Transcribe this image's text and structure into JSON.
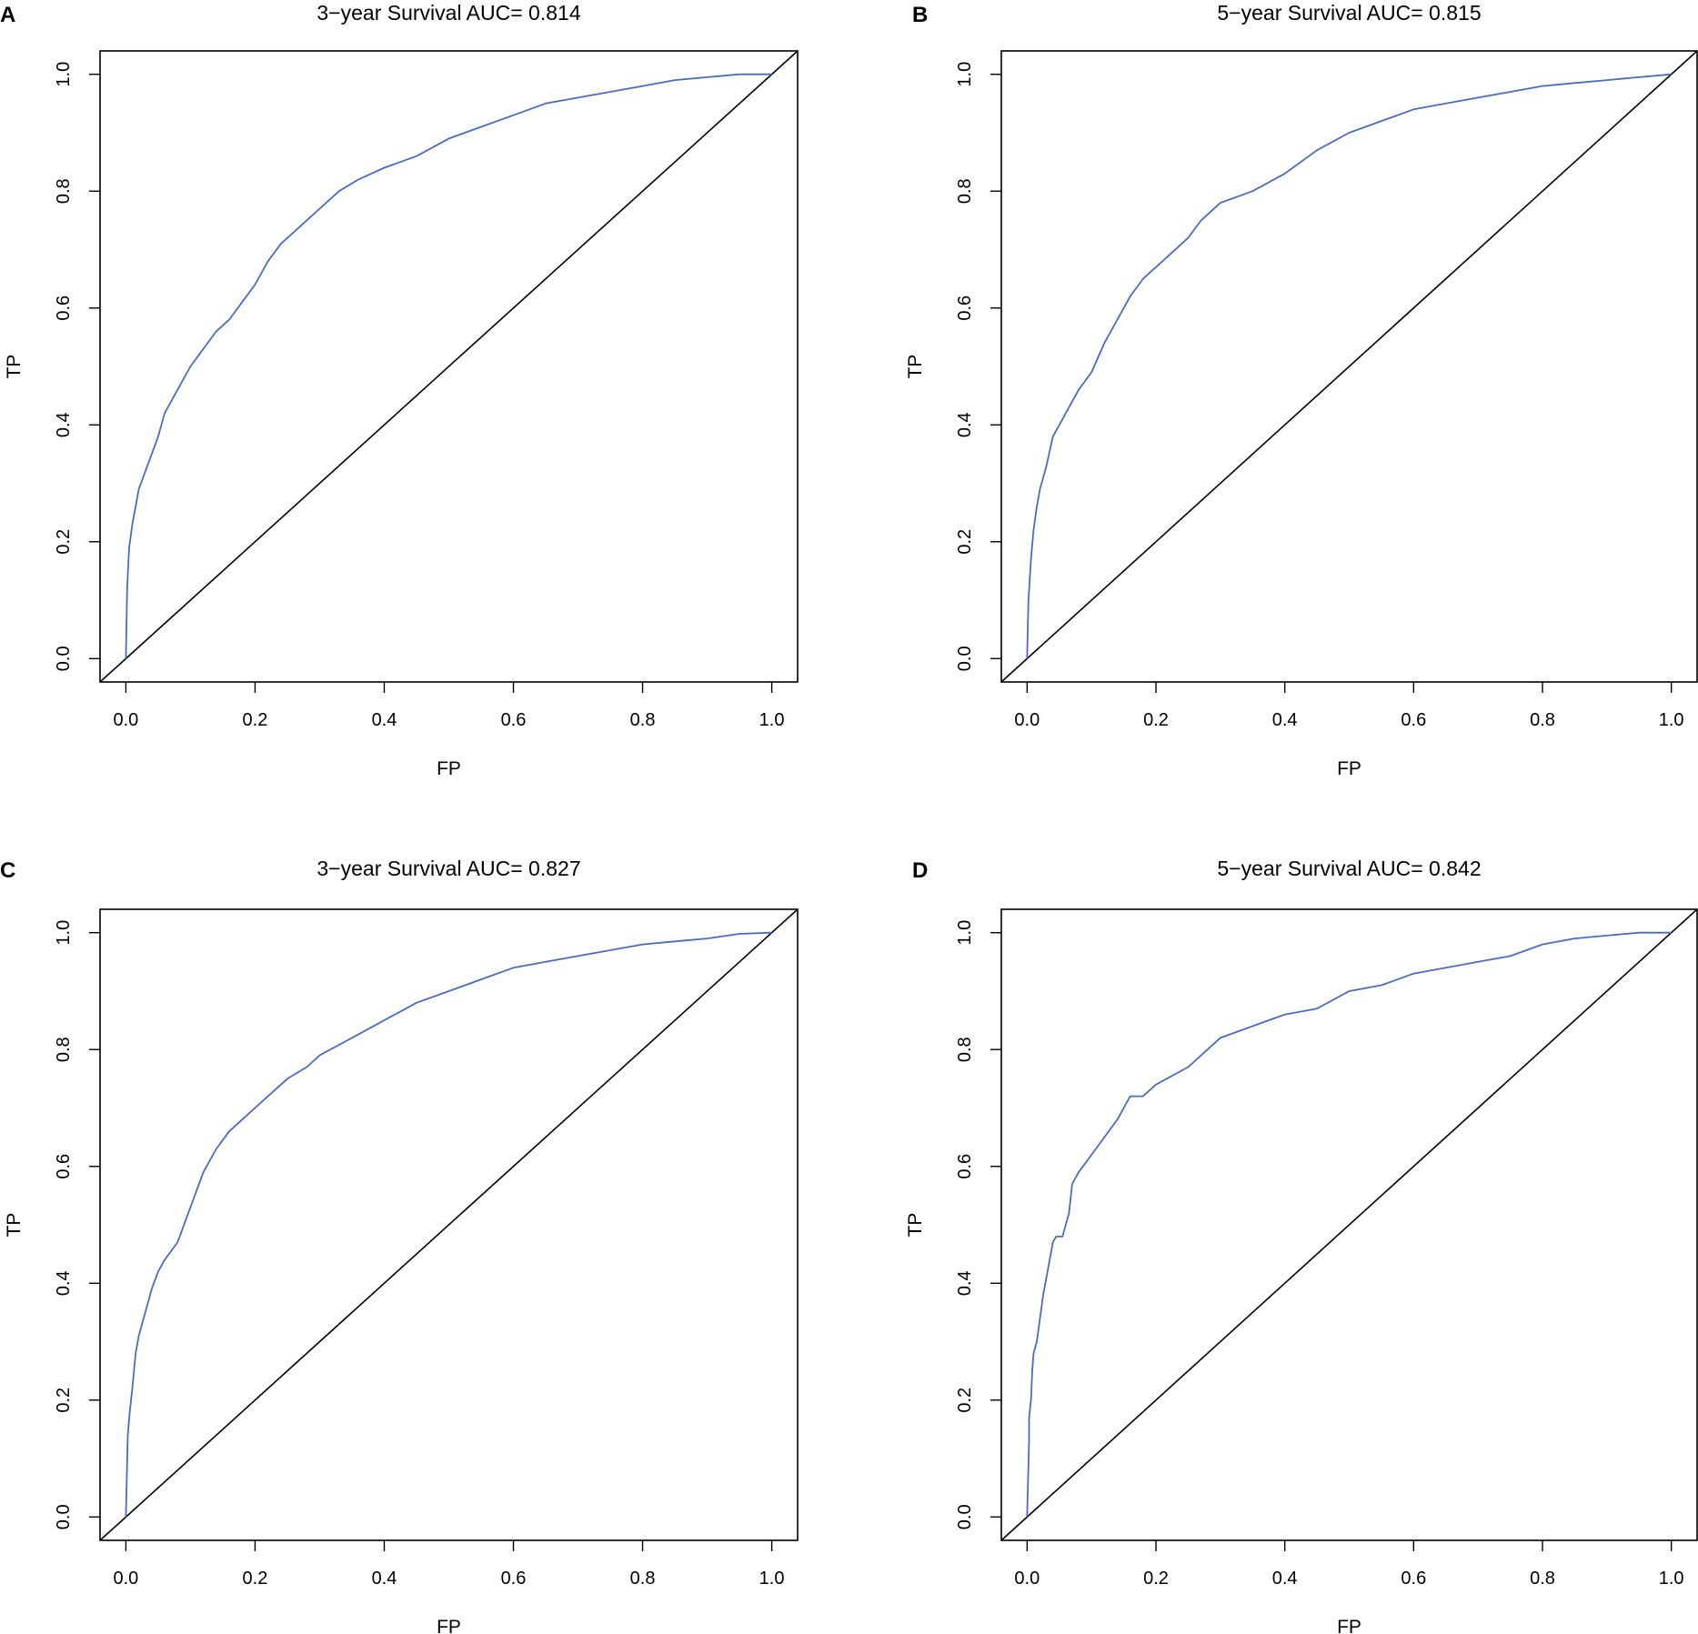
{
  "colors": {
    "roc_line": "#4a6cc0",
    "axes": "#000000",
    "background": "#ffffff"
  },
  "chart_data": [
    {
      "panel": "A",
      "type": "line",
      "title": "3−year Survival AUC= 0.814",
      "xlabel": "FP",
      "ylabel": "TP",
      "xlim": [
        0,
        1
      ],
      "ylim": [
        0,
        1
      ],
      "xticks": [
        "0.0",
        "0.2",
        "0.4",
        "0.6",
        "0.8",
        "1.0"
      ],
      "yticks": [
        "0.0",
        "0.2",
        "0.4",
        "0.6",
        "0.8",
        "1.0"
      ],
      "reference_line": [
        [
          0,
          0
        ],
        [
          1,
          1
        ]
      ],
      "series": [
        {
          "name": "ROC",
          "x": [
            0,
            0.002,
            0.005,
            0.01,
            0.015,
            0.02,
            0.03,
            0.04,
            0.05,
            0.06,
            0.07,
            0.08,
            0.1,
            0.12,
            0.14,
            0.16,
            0.18,
            0.2,
            0.22,
            0.24,
            0.27,
            0.3,
            0.33,
            0.36,
            0.4,
            0.45,
            0.5,
            0.55,
            0.6,
            0.65,
            0.7,
            0.75,
            0.8,
            0.85,
            0.9,
            0.95,
            1.0
          ],
          "y": [
            0,
            0.12,
            0.19,
            0.23,
            0.26,
            0.29,
            0.32,
            0.35,
            0.38,
            0.42,
            0.44,
            0.46,
            0.5,
            0.53,
            0.56,
            0.58,
            0.61,
            0.64,
            0.68,
            0.71,
            0.74,
            0.77,
            0.8,
            0.82,
            0.84,
            0.86,
            0.89,
            0.91,
            0.93,
            0.95,
            0.96,
            0.97,
            0.98,
            0.99,
            0.995,
            1.0,
            1.0
          ]
        }
      ]
    },
    {
      "panel": "B",
      "type": "line",
      "title": "5−year Survival AUC= 0.815",
      "xlabel": "FP",
      "ylabel": "TP",
      "xlim": [
        0,
        1
      ],
      "ylim": [
        0,
        1
      ],
      "xticks": [
        "0.0",
        "0.2",
        "0.4",
        "0.6",
        "0.8",
        "1.0"
      ],
      "yticks": [
        "0.0",
        "0.2",
        "0.4",
        "0.6",
        "0.8",
        "1.0"
      ],
      "reference_line": [
        [
          0,
          0
        ],
        [
          1,
          1
        ]
      ],
      "series": [
        {
          "name": "ROC",
          "x": [
            0,
            0.002,
            0.006,
            0.01,
            0.015,
            0.02,
            0.03,
            0.04,
            0.05,
            0.06,
            0.08,
            0.1,
            0.12,
            0.14,
            0.16,
            0.18,
            0.2,
            0.22,
            0.25,
            0.27,
            0.3,
            0.35,
            0.4,
            0.45,
            0.5,
            0.55,
            0.6,
            0.65,
            0.7,
            0.75,
            0.8,
            0.85,
            0.9,
            0.95,
            1.0
          ],
          "y": [
            0,
            0.1,
            0.17,
            0.22,
            0.26,
            0.29,
            0.33,
            0.38,
            0.4,
            0.42,
            0.46,
            0.49,
            0.54,
            0.58,
            0.62,
            0.65,
            0.67,
            0.69,
            0.72,
            0.75,
            0.78,
            0.8,
            0.83,
            0.87,
            0.9,
            0.92,
            0.94,
            0.95,
            0.96,
            0.97,
            0.98,
            0.985,
            0.99,
            0.995,
            1.0
          ]
        }
      ]
    },
    {
      "panel": "C",
      "type": "line",
      "title": "3−year Survival AUC= 0.827",
      "xlabel": "FP",
      "ylabel": "TP",
      "xlim": [
        0,
        1
      ],
      "ylim": [
        0,
        1
      ],
      "xticks": [
        "0.0",
        "0.2",
        "0.4",
        "0.6",
        "0.8",
        "1.0"
      ],
      "yticks": [
        "0.0",
        "0.2",
        "0.4",
        "0.6",
        "0.8",
        "1.0"
      ],
      "reference_line": [
        [
          0,
          0
        ],
        [
          1,
          1
        ]
      ],
      "series": [
        {
          "name": "ROC",
          "x": [
            0,
            0.003,
            0.006,
            0.01,
            0.015,
            0.02,
            0.03,
            0.04,
            0.05,
            0.06,
            0.08,
            0.1,
            0.12,
            0.14,
            0.16,
            0.18,
            0.2,
            0.22,
            0.25,
            0.28,
            0.3,
            0.35,
            0.4,
            0.45,
            0.5,
            0.55,
            0.6,
            0.65,
            0.7,
            0.75,
            0.8,
            0.85,
            0.9,
            0.95,
            1.0
          ],
          "y": [
            0,
            0.14,
            0.18,
            0.22,
            0.28,
            0.31,
            0.35,
            0.39,
            0.42,
            0.44,
            0.47,
            0.53,
            0.59,
            0.63,
            0.66,
            0.68,
            0.7,
            0.72,
            0.75,
            0.77,
            0.79,
            0.82,
            0.85,
            0.88,
            0.9,
            0.92,
            0.94,
            0.95,
            0.96,
            0.97,
            0.98,
            0.985,
            0.99,
            0.998,
            1.0
          ]
        }
      ]
    },
    {
      "panel": "D",
      "type": "line",
      "title": "5−year Survival AUC= 0.842",
      "xlabel": "FP",
      "ylabel": "TP",
      "xlim": [
        0,
        1
      ],
      "ylim": [
        0,
        1
      ],
      "xticks": [
        "0.0",
        "0.2",
        "0.4",
        "0.6",
        "0.8",
        "1.0"
      ],
      "yticks": [
        "0.0",
        "0.2",
        "0.4",
        "0.6",
        "0.8",
        "1.0"
      ],
      "reference_line": [
        [
          0,
          0
        ],
        [
          1,
          1
        ]
      ],
      "series": [
        {
          "name": "ROC",
          "x": [
            0,
            0.003,
            0.003,
            0.006,
            0.008,
            0.01,
            0.015,
            0.02,
            0.025,
            0.03,
            0.04,
            0.045,
            0.055,
            0.065,
            0.07,
            0.08,
            0.1,
            0.12,
            0.14,
            0.16,
            0.18,
            0.2,
            0.25,
            0.28,
            0.3,
            0.35,
            0.4,
            0.45,
            0.5,
            0.55,
            0.6,
            0.65,
            0.7,
            0.75,
            0.8,
            0.85,
            0.9,
            0.95,
            1.0
          ],
          "y": [
            0,
            0.13,
            0.17,
            0.2,
            0.25,
            0.28,
            0.3,
            0.34,
            0.38,
            0.41,
            0.47,
            0.48,
            0.48,
            0.52,
            0.57,
            0.59,
            0.62,
            0.65,
            0.68,
            0.72,
            0.72,
            0.74,
            0.77,
            0.8,
            0.82,
            0.84,
            0.86,
            0.87,
            0.9,
            0.91,
            0.93,
            0.94,
            0.95,
            0.96,
            0.98,
            0.99,
            0.995,
            1.0,
            1.0
          ]
        }
      ]
    }
  ]
}
